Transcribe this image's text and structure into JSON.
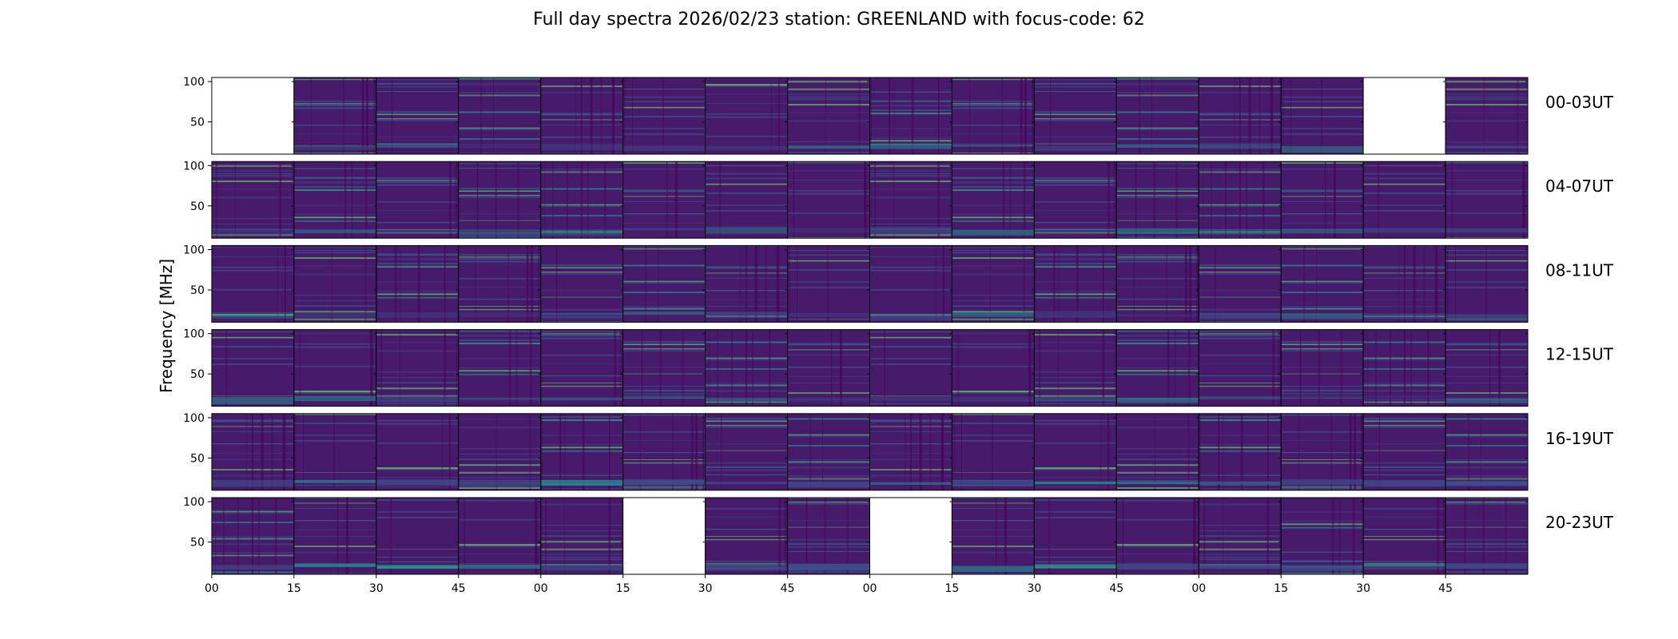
{
  "title": "Full day spectra 2026/02/23 station: GREENLAND with focus-code: 62",
  "chart_data": {
    "type": "heatmap",
    "title": "Full day spectra 2026/02/23 station: GREENLAND with focus-code: 62",
    "ylabel": "Frequency [MHz]",
    "xlabel": "",
    "ylim": [
      10,
      105
    ],
    "yticks": [
      50,
      100
    ],
    "xticks": [
      "00",
      "15",
      "30",
      "45",
      "00",
      "15",
      "30",
      "45",
      "00",
      "15",
      "30",
      "45",
      "00",
      "15",
      "30",
      "45"
    ],
    "colormap": "viridis",
    "rows": [
      {
        "label": "00-03UT",
        "missing": [
          0,
          14
        ]
      },
      {
        "label": "04-07UT",
        "missing": []
      },
      {
        "label": "08-11UT",
        "missing": []
      },
      {
        "label": "12-15UT",
        "missing": []
      },
      {
        "label": "16-19UT",
        "missing": []
      },
      {
        "label": "20-23UT",
        "missing": [
          5,
          8
        ]
      }
    ],
    "panels_per_row": 16,
    "minutes_per_panel": 15
  },
  "colors": {
    "background": "#481a6c",
    "low": "#440154",
    "mid": "#3b528b",
    "high": "#21918c",
    "peak": "#5ec962"
  }
}
